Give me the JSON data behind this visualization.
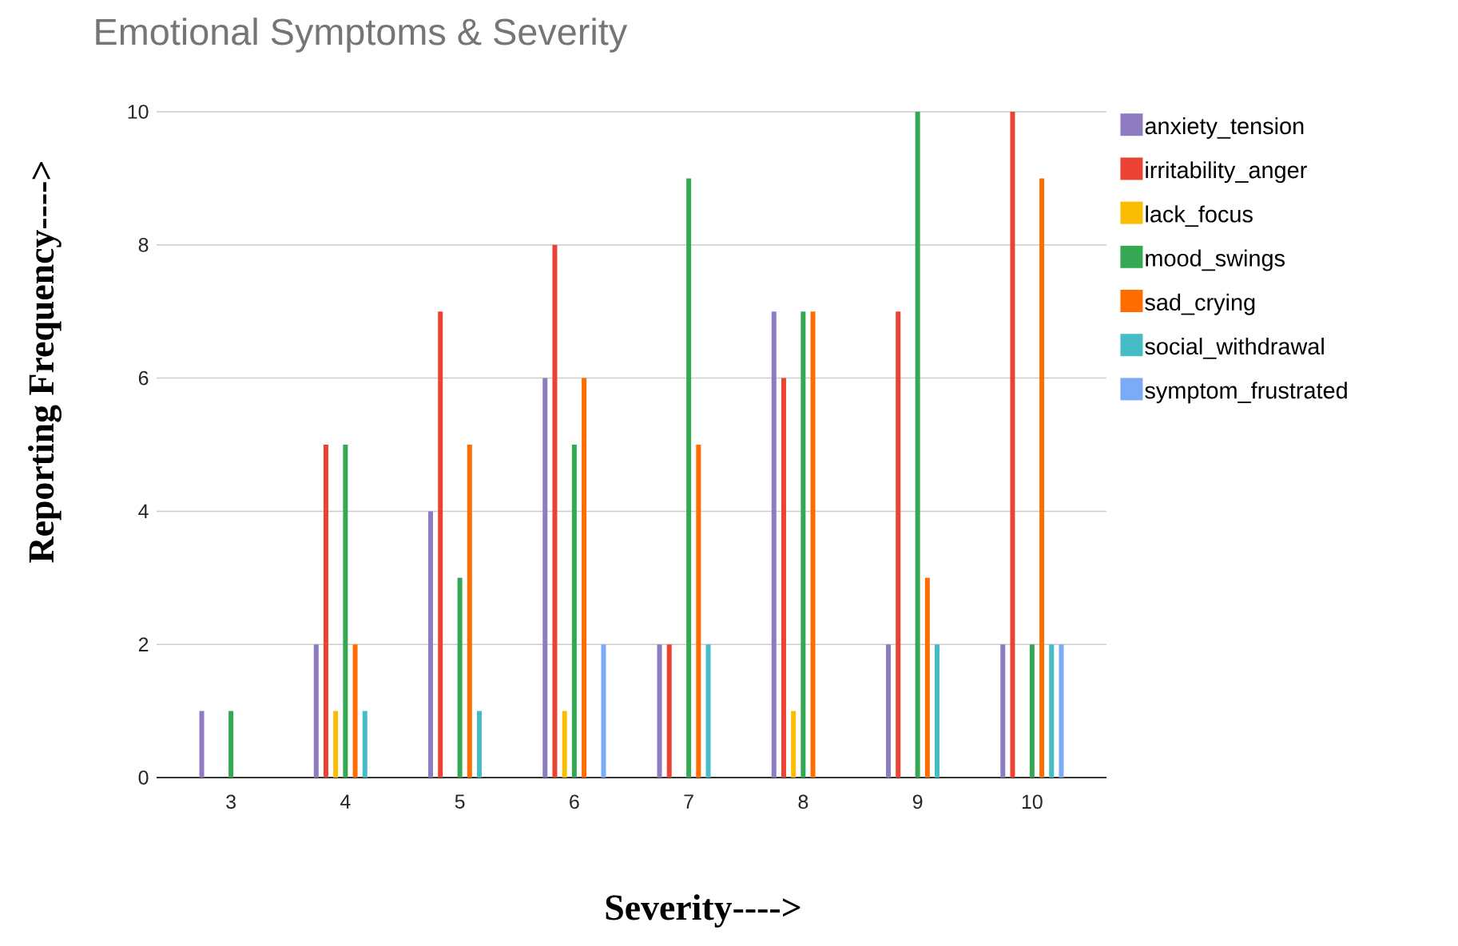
{
  "chart_data": {
    "type": "bar",
    "title": "Emotional Symptoms & Severity",
    "xlabel": "Severity---->",
    "ylabel": "Reporting Frequency---->",
    "categories": [
      "3",
      "4",
      "5",
      "6",
      "7",
      "8",
      "9",
      "10"
    ],
    "series": [
      {
        "name": "anxiety_tension",
        "color": "#8e7cc3",
        "values": [
          1,
          2,
          4,
          6,
          2,
          7,
          2,
          2
        ]
      },
      {
        "name": "irritability_anger",
        "color": "#ea4335",
        "values": [
          0,
          5,
          7,
          8,
          2,
          6,
          7,
          10
        ]
      },
      {
        "name": "lack_focus",
        "color": "#fbbc04",
        "values": [
          0,
          1,
          0,
          1,
          0,
          1,
          0,
          0
        ]
      },
      {
        "name": "mood_swings",
        "color": "#34a853",
        "values": [
          1,
          5,
          3,
          5,
          9,
          7,
          10,
          2
        ]
      },
      {
        "name": "sad_crying",
        "color": "#ff6d01",
        "values": [
          0,
          2,
          5,
          6,
          5,
          7,
          3,
          9
        ]
      },
      {
        "name": "social_withdrawal",
        "color": "#46bdc6",
        "values": [
          0,
          1,
          1,
          0,
          2,
          0,
          2,
          2
        ]
      },
      {
        "name": "symptom_frustrated",
        "color": "#7baaf7",
        "values": [
          0,
          0,
          0,
          2,
          0,
          0,
          0,
          2
        ]
      }
    ],
    "ylim": [
      0,
      10
    ],
    "yticks": [
      0,
      2,
      4,
      6,
      8,
      10
    ],
    "grid": "y",
    "legend": "right"
  }
}
